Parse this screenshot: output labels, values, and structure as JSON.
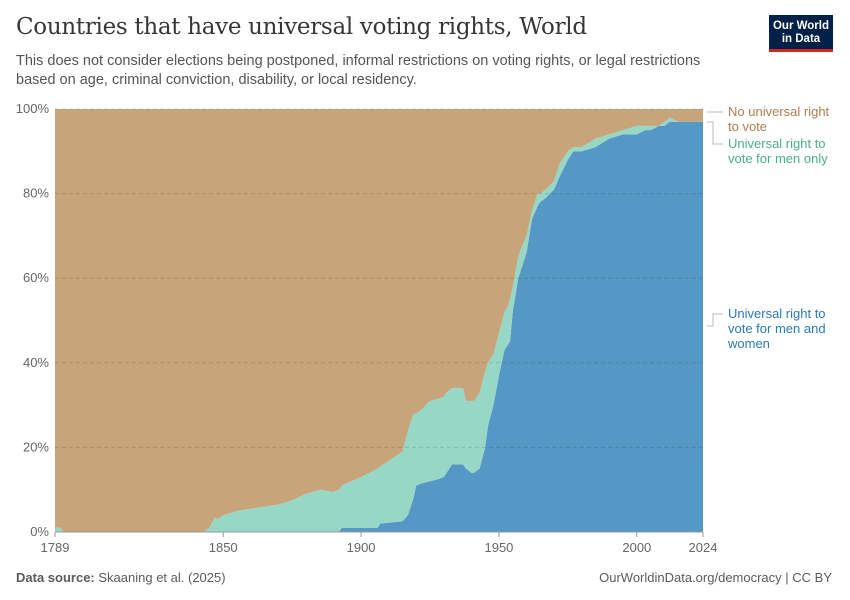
{
  "header": {
    "title": "Countries that have universal voting rights, World",
    "subtitle": "This does not consider elections being postponed, informal restrictions on voting rights, or legal restrictions based on age, criminal conviction, disability, or local residency.",
    "logo": "Our World in Data"
  },
  "footer": {
    "source_label": "Data source:",
    "source": "Skaaning et al. (2025)",
    "url": "OurWorldinData.org/democracy | CC BY"
  },
  "chart_data": {
    "type": "area",
    "stacked": true,
    "title": "Countries that have universal voting rights, World",
    "xlabel": "",
    "ylabel": "",
    "ylim": [
      0,
      100
    ],
    "xlim": [
      1789,
      2024
    ],
    "x_ticks": [
      "1789",
      "1850",
      "1900",
      "1950",
      "2000",
      "2024"
    ],
    "y_ticks": [
      "0%",
      "20%",
      "40%",
      "60%",
      "80%",
      "100%"
    ],
    "grid": "horizontal dashed",
    "legend": "right (inline labels)",
    "x": [
      1789,
      1791,
      1792,
      1843,
      1845,
      1847,
      1848,
      1850,
      1855,
      1860,
      1865,
      1870,
      1875,
      1880,
      1885,
      1890,
      1892,
      1893,
      1900,
      1906,
      1907,
      1915,
      1917,
      1919,
      1920,
      1922,
      1925,
      1928,
      1930,
      1931,
      1933,
      1936,
      1937,
      1938,
      1940,
      1941,
      1943,
      1945,
      1946,
      1948,
      1950,
      1952,
      1953,
      1954,
      1955,
      1957,
      1958,
      1960,
      1962,
      1964,
      1965,
      1967,
      1970,
      1972,
      1975,
      1977,
      1980,
      1985,
      1990,
      1995,
      2000,
      2003,
      2005,
      2008,
      2010,
      2012,
      2015,
      2024
    ],
    "series": [
      {
        "name": "Universal right to vote for men and women",
        "color": "#5597c5",
        "values": [
          0,
          0,
          0,
          0,
          0,
          0,
          0,
          0,
          0,
          0,
          0,
          0,
          0,
          0,
          0,
          0,
          0,
          1,
          1,
          1,
          2,
          2.5,
          4,
          8,
          11,
          11.5,
          12,
          12.5,
          13,
          14,
          16,
          16,
          16,
          15,
          14,
          14,
          15,
          20,
          25,
          30,
          37,
          43,
          44,
          45,
          52,
          60,
          62,
          66,
          74,
          77,
          78,
          79,
          81,
          84,
          88,
          90,
          90,
          91,
          93,
          94,
          94,
          95,
          95,
          96,
          96,
          97,
          97,
          97
        ]
      },
      {
        "name": "Universal right to vote for men only",
        "color": "#97d7c6",
        "values": [
          1,
          1,
          0,
          0,
          1,
          3.5,
          3,
          4,
          5,
          5.5,
          6,
          6.5,
          7.5,
          9,
          10,
          9.5,
          10,
          10,
          12,
          14,
          13.5,
          16.5,
          20,
          20,
          17,
          17.5,
          19,
          19,
          19,
          19,
          18,
          18,
          18,
          16,
          17,
          17,
          18,
          18,
          15,
          12,
          10,
          9,
          9,
          10,
          6,
          5,
          5,
          4,
          2,
          3,
          2,
          2,
          2,
          3,
          2,
          1,
          1,
          2,
          1,
          1,
          2,
          1,
          1,
          0,
          1,
          1,
          0,
          0
        ]
      },
      {
        "name": "No universal right to vote",
        "color": "#c8a47a",
        "values": [
          99,
          99,
          100,
          100,
          99,
          96.5,
          97,
          96,
          95,
          94.5,
          94,
          93.5,
          92.5,
          91,
          90,
          90.5,
          90,
          89,
          87,
          85,
          84.5,
          81,
          76,
          72,
          72,
          71,
          69,
          68.5,
          68,
          67,
          66,
          66,
          66,
          69,
          69,
          69,
          67,
          62,
          60,
          58,
          53,
          48,
          47,
          45,
          42,
          35,
          33,
          30,
          24,
          20,
          20,
          19,
          17,
          13,
          10,
          9,
          9,
          7,
          6,
          5,
          4,
          4,
          4,
          4,
          3,
          2,
          3,
          3
        ]
      }
    ],
    "labels": {
      "no_right": "No universal right to vote",
      "men_only": "Universal right to vote for men only",
      "men_women": "Universal right to vote for men and women"
    },
    "label_colors": {
      "no_right": "#b07d4e",
      "men_only": "#4cab90",
      "men_women": "#2a7ab8"
    }
  }
}
